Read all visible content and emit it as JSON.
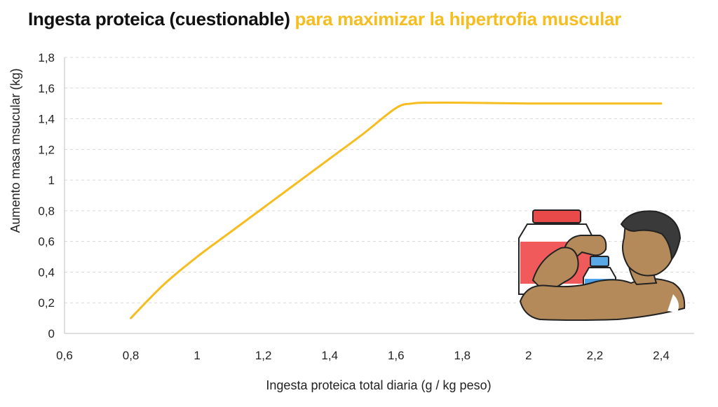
{
  "title": {
    "part1": "Ingesta proteica (cuestionable)",
    "part2": "para maximizar la hipertrofia muscular"
  },
  "colors": {
    "title_dark": "#111111",
    "title_accent": "#f5bd1f",
    "line": "#f5bd1f",
    "grid": "#d9d9d9",
    "axis": "#bfbfbf"
  },
  "illustration": {
    "description_icon": "muscular-man-flexing-with-protein-tubs-icon"
  },
  "chart_data": {
    "type": "line",
    "title": "Ingesta proteica (cuestionable) para maximizar la hipertrofia muscular",
    "xlabel": "Ingesta proteica total diaria (g / kg peso)",
    "ylabel": "Aumento masa msucular (kg)",
    "xlim": [
      0.6,
      2.4
    ],
    "ylim": [
      0,
      1.8
    ],
    "x_ticks": [
      0.6,
      0.8,
      1.0,
      1.2,
      1.4,
      1.6,
      1.8,
      2.0,
      2.2,
      2.4
    ],
    "x_tick_labels": [
      "0,6",
      "0,8",
      "1",
      "1,2",
      "1,4",
      "1,6",
      "1,8",
      "2",
      "2,2",
      "2,4"
    ],
    "y_ticks": [
      0,
      0.2,
      0.4,
      0.6,
      0.8,
      1.0,
      1.2,
      1.4,
      1.6,
      1.8
    ],
    "y_tick_labels": [
      "0",
      "0,2",
      "0,4",
      "0,6",
      "0,8",
      "1",
      "1,2",
      "1,4",
      "1,6",
      "1,8"
    ],
    "grid": "horizontal dashed",
    "series": [
      {
        "x": [
          0.8,
          0.9,
          1.0,
          1.1,
          1.2,
          1.3,
          1.4,
          1.5,
          1.6,
          1.65,
          1.7,
          1.8,
          2.0,
          2.2,
          2.4
        ],
        "y": [
          0.1,
          0.32,
          0.5,
          0.66,
          0.82,
          0.98,
          1.14,
          1.3,
          1.47,
          1.5,
          1.505,
          1.505,
          1.5,
          1.5,
          1.5
        ]
      }
    ]
  }
}
